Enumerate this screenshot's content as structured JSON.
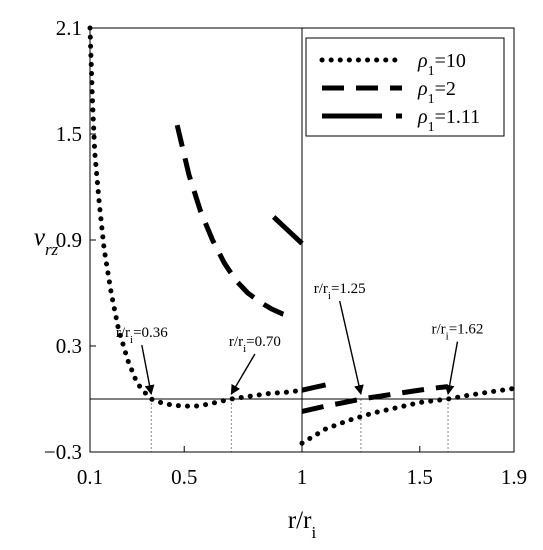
{
  "chart_data": {
    "type": "line",
    "xlabel": "r/r",
    "xlabel_sub": "i",
    "ylabel": "v",
    "ylabel_sub": "rz",
    "xlim": [
      0.1,
      1.9
    ],
    "ylim": [
      -0.3,
      2.1
    ],
    "xticks": [
      {
        "value": 0.1,
        "label": "0.1"
      },
      {
        "value": 0.5,
        "label": "0.5"
      },
      {
        "value": 1.0,
        "label": "1"
      },
      {
        "value": 1.5,
        "label": "1.5"
      },
      {
        "value": 1.9,
        "label": "1.9"
      }
    ],
    "yticks": [
      {
        "value": -0.3,
        "label": "−0.3"
      },
      {
        "value": 0.3,
        "label": "0.3"
      },
      {
        "value": 0.9,
        "label": "0.9"
      },
      {
        "value": 1.5,
        "label": "1.5"
      },
      {
        "value": 2.1,
        "label": "2.1"
      }
    ],
    "grid": false,
    "reference_lines": {
      "x": 1.0,
      "y": 0.0
    },
    "legend_position": "top-right",
    "series": [
      {
        "name": "ρ1=10",
        "name_base": "ρ",
        "name_sub": "1",
        "name_rest": "=10",
        "style": "dotted",
        "segments": [
          [
            [
              0.1,
              2.1
            ],
            [
              0.11,
              1.7
            ],
            [
              0.12,
              1.4
            ],
            [
              0.14,
              1.1
            ],
            [
              0.16,
              0.85
            ],
            [
              0.19,
              0.6
            ],
            [
              0.22,
              0.4
            ],
            [
              0.26,
              0.22
            ],
            [
              0.3,
              0.09
            ],
            [
              0.33,
              0.04
            ],
            [
              0.36,
              0.0
            ],
            [
              0.4,
              -0.02
            ],
            [
              0.45,
              -0.035
            ],
            [
              0.5,
              -0.04
            ],
            [
              0.55,
              -0.04
            ],
            [
              0.6,
              -0.03
            ],
            [
              0.65,
              -0.015
            ],
            [
              0.7,
              0.0
            ],
            [
              0.75,
              0.01
            ],
            [
              0.8,
              0.02
            ],
            [
              0.85,
              0.03
            ],
            [
              0.9,
              0.035
            ],
            [
              0.95,
              0.04
            ],
            [
              1.0,
              0.05
            ]
          ],
          [
            [
              1.0,
              -0.25
            ],
            [
              1.1,
              -0.17
            ],
            [
              1.2,
              -0.12
            ],
            [
              1.3,
              -0.08
            ],
            [
              1.4,
              -0.05
            ],
            [
              1.5,
              -0.02
            ],
            [
              1.62,
              0.0
            ],
            [
              1.7,
              0.02
            ],
            [
              1.8,
              0.04
            ],
            [
              1.9,
              0.06
            ]
          ]
        ]
      },
      {
        "name": "ρ1=2",
        "name_base": "ρ",
        "name_sub": "1",
        "name_rest": "=2",
        "style": "dashed",
        "segments": [
          [
            [
              0.47,
              1.55
            ],
            [
              0.52,
              1.27
            ],
            [
              0.57,
              1.06
            ],
            [
              0.62,
              0.9
            ],
            [
              0.67,
              0.77
            ],
            [
              0.72,
              0.67
            ],
            [
              0.77,
              0.6
            ],
            [
              0.82,
              0.55
            ],
            [
              0.87,
              0.51
            ],
            [
              0.92,
              0.48
            ],
            [
              0.95,
              0.47
            ]
          ],
          [
            [
              1.0,
              -0.07
            ],
            [
              1.1,
              -0.04
            ],
            [
              1.2,
              -0.015
            ],
            [
              1.25,
              0.0
            ],
            [
              1.35,
              0.02
            ],
            [
              1.45,
              0.04
            ],
            [
              1.55,
              0.06
            ],
            [
              1.62,
              0.07
            ]
          ]
        ]
      },
      {
        "name": "ρ1=1.11",
        "name_base": "ρ",
        "name_sub": "1",
        "name_rest": "=1.11",
        "style": "longdash",
        "segments": [
          [
            [
              0.88,
              1.03
            ],
            [
              0.92,
              0.98
            ],
            [
              0.96,
              0.93
            ],
            [
              1.0,
              0.88
            ]
          ],
          [
            [
              1.0,
              0.05
            ],
            [
              1.05,
              0.065
            ],
            [
              1.1,
              0.08
            ]
          ]
        ]
      }
    ],
    "annotations": [
      {
        "text": "r/r",
        "sub": "i",
        "rest": "=0.36",
        "x": 0.36,
        "y": 0.0,
        "text_x": 0.32,
        "text_y": 0.35
      },
      {
        "text": "r/r",
        "sub": "i",
        "rest": "=0.70",
        "x": 0.7,
        "y": 0.0,
        "text_x": 0.8,
        "text_y": 0.3
      },
      {
        "text": "r/r",
        "sub": "i",
        "rest": "=1.25",
        "x": 1.25,
        "y": 0.0,
        "text_x": 1.16,
        "text_y": 0.6
      },
      {
        "text": "r/r",
        "sub": "i",
        "rest": "=1.62",
        "x": 1.62,
        "y": 0.0,
        "text_x": 1.66,
        "text_y": 0.37
      }
    ]
  }
}
